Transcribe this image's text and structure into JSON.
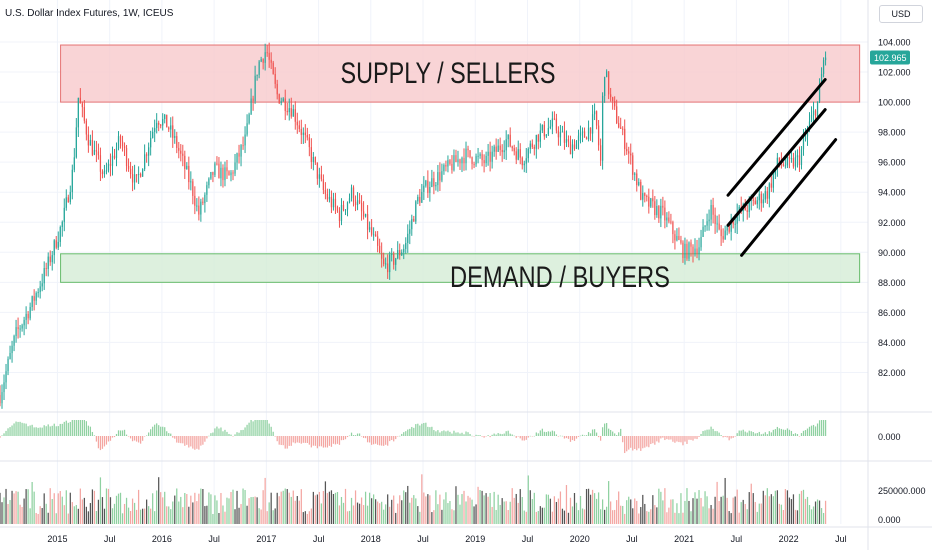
{
  "header": {
    "instrument": "U.S. Dollar Index Futures",
    "interval": "1W",
    "exchange": "ICEUS",
    "currency_button": "USD"
  },
  "colors": {
    "up": "#26a69a",
    "down": "#ef5350",
    "up_light": "#8fd1a1",
    "down_light": "#f4a6a2",
    "volume_neutral": "#555555",
    "supply_fill": "#f7c9cc",
    "supply_border": "#e57373",
    "demand_fill": "#d5ecd6",
    "demand_border": "#66bb6a",
    "channel": "#000000",
    "price_tag": "#26a69a"
  },
  "annotations": {
    "supply_label": "SUPPLY / SELLERS",
    "demand_label": "DEMAND / BUYERS"
  },
  "chart_data": {
    "type": "candlestick",
    "title": "U.S. Dollar Index Futures, 1W, ICEUS",
    "x_labels": [
      "2015",
      "Jul",
      "2016",
      "Jul",
      "2017",
      "Jul",
      "2018",
      "Jul",
      "2019",
      "Jul",
      "2020",
      "Jul",
      "2021",
      "Jul",
      "2022",
      "Jul"
    ],
    "x_label_dates": [
      2015.0,
      2015.5,
      2016.0,
      2016.5,
      2017.0,
      2017.5,
      2018.0,
      2018.5,
      2019.0,
      2019.5,
      2020.0,
      2020.5,
      2021.0,
      2021.5,
      2022.0,
      2022.5
    ],
    "y_ticks": [
      "104.000",
      "102.000",
      "100.000",
      "98.000",
      "96.000",
      "94.000",
      "92.000",
      "90.000",
      "88.000",
      "86.000",
      "84.000",
      "82.000"
    ],
    "ylim": [
      79.5,
      104.8
    ],
    "last_price": "102.965",
    "price_path": [
      [
        2014.45,
        80.5
      ],
      [
        2014.6,
        84.5
      ],
      [
        2014.75,
        86.5
      ],
      [
        2014.9,
        89.0
      ],
      [
        2015.05,
        92.0
      ],
      [
        2015.15,
        95.5
      ],
      [
        2015.2,
        100.3
      ],
      [
        2015.3,
        97.5
      ],
      [
        2015.45,
        95.0
      ],
      [
        2015.6,
        97.5
      ],
      [
        2015.75,
        94.5
      ],
      [
        2015.95,
        99.0
      ],
      [
        2016.05,
        98.5
      ],
      [
        2016.15,
        97.0
      ],
      [
        2016.3,
        94.0
      ],
      [
        2016.35,
        92.5
      ],
      [
        2016.5,
        95.5
      ],
      [
        2016.65,
        95.0
      ],
      [
        2016.8,
        97.5
      ],
      [
        2016.92,
        102.5
      ],
      [
        2017.0,
        103.5
      ],
      [
        2017.1,
        100.5
      ],
      [
        2017.25,
        99.5
      ],
      [
        2017.4,
        97.0
      ],
      [
        2017.55,
        94.0
      ],
      [
        2017.7,
        92.5
      ],
      [
        2017.82,
        94.0
      ],
      [
        2017.95,
        92.0
      ],
      [
        2018.05,
        90.5
      ],
      [
        2018.12,
        89.0
      ],
      [
        2018.22,
        89.5
      ],
      [
        2018.33,
        90.5
      ],
      [
        2018.45,
        93.5
      ],
      [
        2018.55,
        94.5
      ],
      [
        2018.72,
        95.5
      ],
      [
        2018.9,
        96.5
      ],
      [
        2019.1,
        96.0
      ],
      [
        2019.3,
        97.5
      ],
      [
        2019.45,
        96.2
      ],
      [
        2019.6,
        97.8
      ],
      [
        2019.75,
        98.5
      ],
      [
        2019.9,
        97.0
      ],
      [
        2020.05,
        97.8
      ],
      [
        2020.15,
        99.0
      ],
      [
        2020.2,
        96.0
      ],
      [
        2020.23,
        102.5
      ],
      [
        2020.3,
        100.0
      ],
      [
        2020.45,
        97.0
      ],
      [
        2020.6,
        93.5
      ],
      [
        2020.8,
        92.5
      ],
      [
        2021.0,
        90.0
      ],
      [
        2021.15,
        90.5
      ],
      [
        2021.25,
        93.0
      ],
      [
        2021.35,
        91.0
      ],
      [
        2021.5,
        92.5
      ],
      [
        2021.65,
        93.2
      ],
      [
        2021.8,
        94.0
      ],
      [
        2021.9,
        96.0
      ],
      [
        2022.0,
        95.8
      ],
      [
        2022.1,
        96.2
      ],
      [
        2022.2,
        98.5
      ],
      [
        2022.28,
        100.0
      ],
      [
        2022.35,
        103.5
      ]
    ],
    "supply_zone": [
      100.0,
      103.8
    ],
    "demand_zone": [
      88.0,
      89.9
    ],
    "channel_lines": [
      [
        [
          2021.42,
          93.8
        ],
        [
          2022.35,
          101.5
        ]
      ],
      [
        [
          2021.42,
          91.8
        ],
        [
          2022.35,
          99.5
        ]
      ],
      [
        [
          2021.55,
          89.8
        ],
        [
          2022.45,
          97.5
        ]
      ]
    ],
    "panels": [
      {
        "name": "price",
        "type": "candlestick"
      },
      {
        "name": "oscillator",
        "type": "histogram",
        "zero_label": "0.000"
      },
      {
        "name": "volume",
        "type": "bar",
        "tick_labels": [
          "250000.000",
          "0.000"
        ]
      }
    ]
  }
}
